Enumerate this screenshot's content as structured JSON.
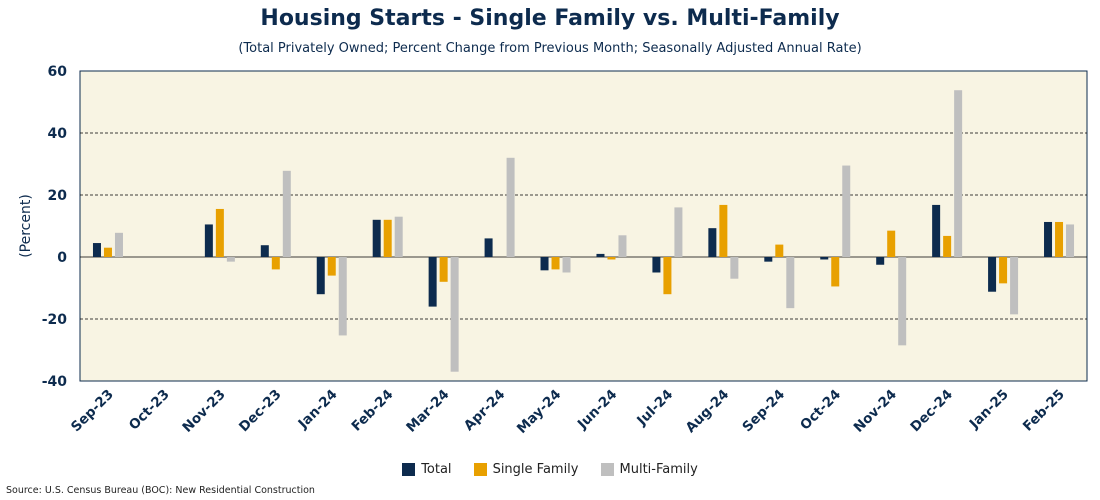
{
  "chart_data": {
    "type": "bar",
    "title": "Housing Starts - Single Family vs. Multi-Family",
    "subtitle": "(Total Privately Owned; Percent Change from Previous Month; Seasonally Adjusted Annual Rate)",
    "ylabel": "(Percent)",
    "ylim": [
      -40,
      60
    ],
    "yticks": [
      -40,
      -20,
      0,
      20,
      40,
      60
    ],
    "grid": true,
    "legend_placement": "bottom",
    "categories": [
      "Sep-23",
      "Oct-23",
      "Nov-23",
      "Dec-23",
      "Jan-24",
      "Feb-24",
      "Mar-24",
      "Apr-24",
      "May-24",
      "Jun-24",
      "Jul-24",
      "Aug-24",
      "Sep-24",
      "Oct-24",
      "Nov-24",
      "Dec-24",
      "Jan-25",
      "Feb-25"
    ],
    "series": [
      {
        "name": "Total",
        "color": "#0d2b4e",
        "values": [
          4.5,
          0,
          10.5,
          3.8,
          -12,
          12,
          -16,
          6,
          -4.3,
          1,
          -5,
          9.3,
          -1.5,
          -0.8,
          -2.5,
          16.8,
          -11.2,
          11.3
        ]
      },
      {
        "name": "Single Family",
        "color": "#e8a000",
        "values": [
          3,
          0,
          15.5,
          -4,
          -6,
          12,
          -8,
          0,
          -4,
          -0.8,
          -12,
          16.8,
          4,
          -9.5,
          8.5,
          6.8,
          -8.5,
          11.3
        ]
      },
      {
        "name": "Multi-Family",
        "color": "#bfbfbf",
        "values": [
          7.8,
          0,
          -1.5,
          27.8,
          -25.3,
          13,
          -37,
          32,
          -5,
          7,
          16,
          -7,
          -16.5,
          29.5,
          -28.5,
          53.8,
          -18.5,
          10.5
        ]
      }
    ],
    "colors": {
      "plot_background": "#f8f4e3",
      "axis_text": "#0d2b4e"
    }
  },
  "source": "Source: U.S. Census Bureau (BOC): New Residential Construction"
}
